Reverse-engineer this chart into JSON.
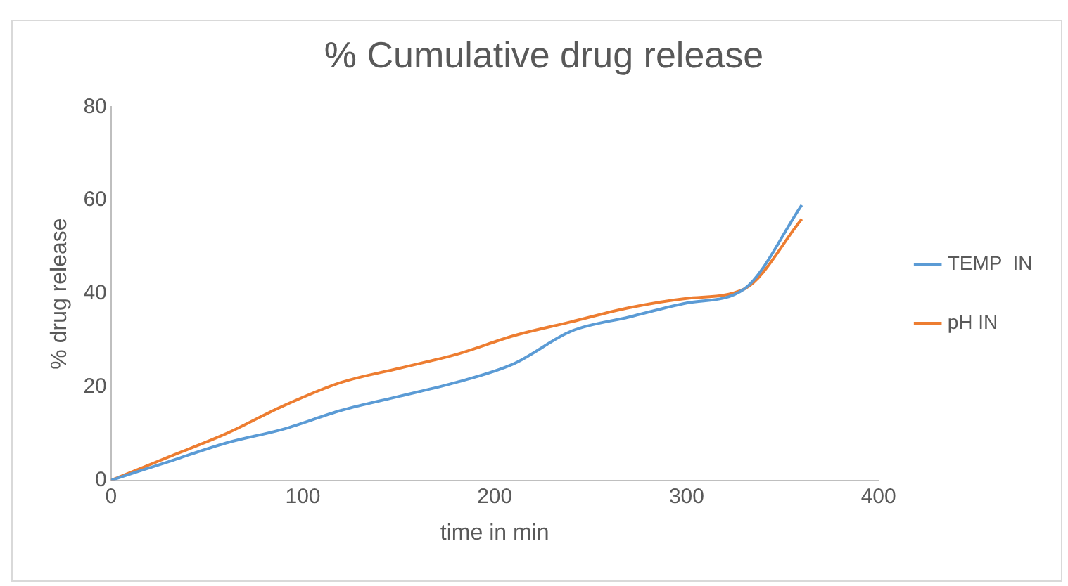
{
  "chart_data": {
    "type": "line",
    "title": "% Cumulative drug release",
    "xlabel": "time in min",
    "ylabel": "% drug release",
    "x": [
      0,
      30,
      60,
      90,
      120,
      150,
      180,
      210,
      240,
      270,
      300,
      330,
      360
    ],
    "series": [
      {
        "name": "TEMP  IN",
        "color": "#5b9bd5",
        "values": [
          0,
          4,
          8,
          11,
          15,
          18,
          21,
          25,
          32,
          35,
          38,
          41,
          59
        ]
      },
      {
        "name": "pH IN",
        "color": "#ed7d31",
        "values": [
          0,
          5,
          10,
          16,
          21,
          24,
          27,
          31,
          34,
          37,
          39,
          41,
          56
        ]
      }
    ],
    "xlim": [
      0,
      400
    ],
    "xticks": [
      0,
      100,
      200,
      300,
      400
    ],
    "ylim": [
      0,
      80
    ],
    "yticks": [
      0,
      20,
      40,
      60,
      80
    ],
    "grid": false,
    "legend": "right",
    "marker": "none"
  }
}
